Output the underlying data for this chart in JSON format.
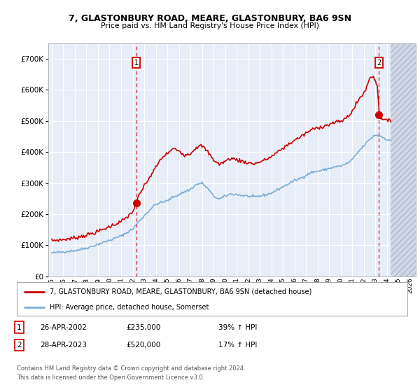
{
  "title": "7, GLASTONBURY ROAD, MEARE, GLASTONBURY, BA6 9SN",
  "subtitle": "Price paid vs. HM Land Registry's House Price Index (HPI)",
  "legend_label_red": "7, GLASTONBURY ROAD, MEARE, GLASTONBURY, BA6 9SN (detached house)",
  "legend_label_blue": "HPI: Average price, detached house, Somerset",
  "footer1": "Contains HM Land Registry data © Crown copyright and database right 2024.",
  "footer2": "This data is licensed under the Open Government Licence v3.0.",
  "sale1_label": "1",
  "sale1_date": "26-APR-2002",
  "sale1_price": "£235,000",
  "sale1_hpi": "39% ↑ HPI",
  "sale2_label": "2",
  "sale2_date": "28-APR-2023",
  "sale2_price": "£520,000",
  "sale2_hpi": "17% ↑ HPI",
  "bg_color": "#e8eef8",
  "grid_color": "#ffffff",
  "red_color": "#cc0000",
  "blue_color": "#7aaed6",
  "hatch_color": "#d0d8e8",
  "ylim": [
    0,
    750000
  ],
  "yticks": [
    0,
    100000,
    200000,
    300000,
    400000,
    500000,
    600000,
    700000
  ],
  "xlim_start": 1994.7,
  "xlim_end": 2026.5,
  "hatch_start": 2024.33,
  "sale1_x": 2002.32,
  "sale1_y": 235000,
  "sale2_x": 2023.32,
  "sale2_y": 520000
}
